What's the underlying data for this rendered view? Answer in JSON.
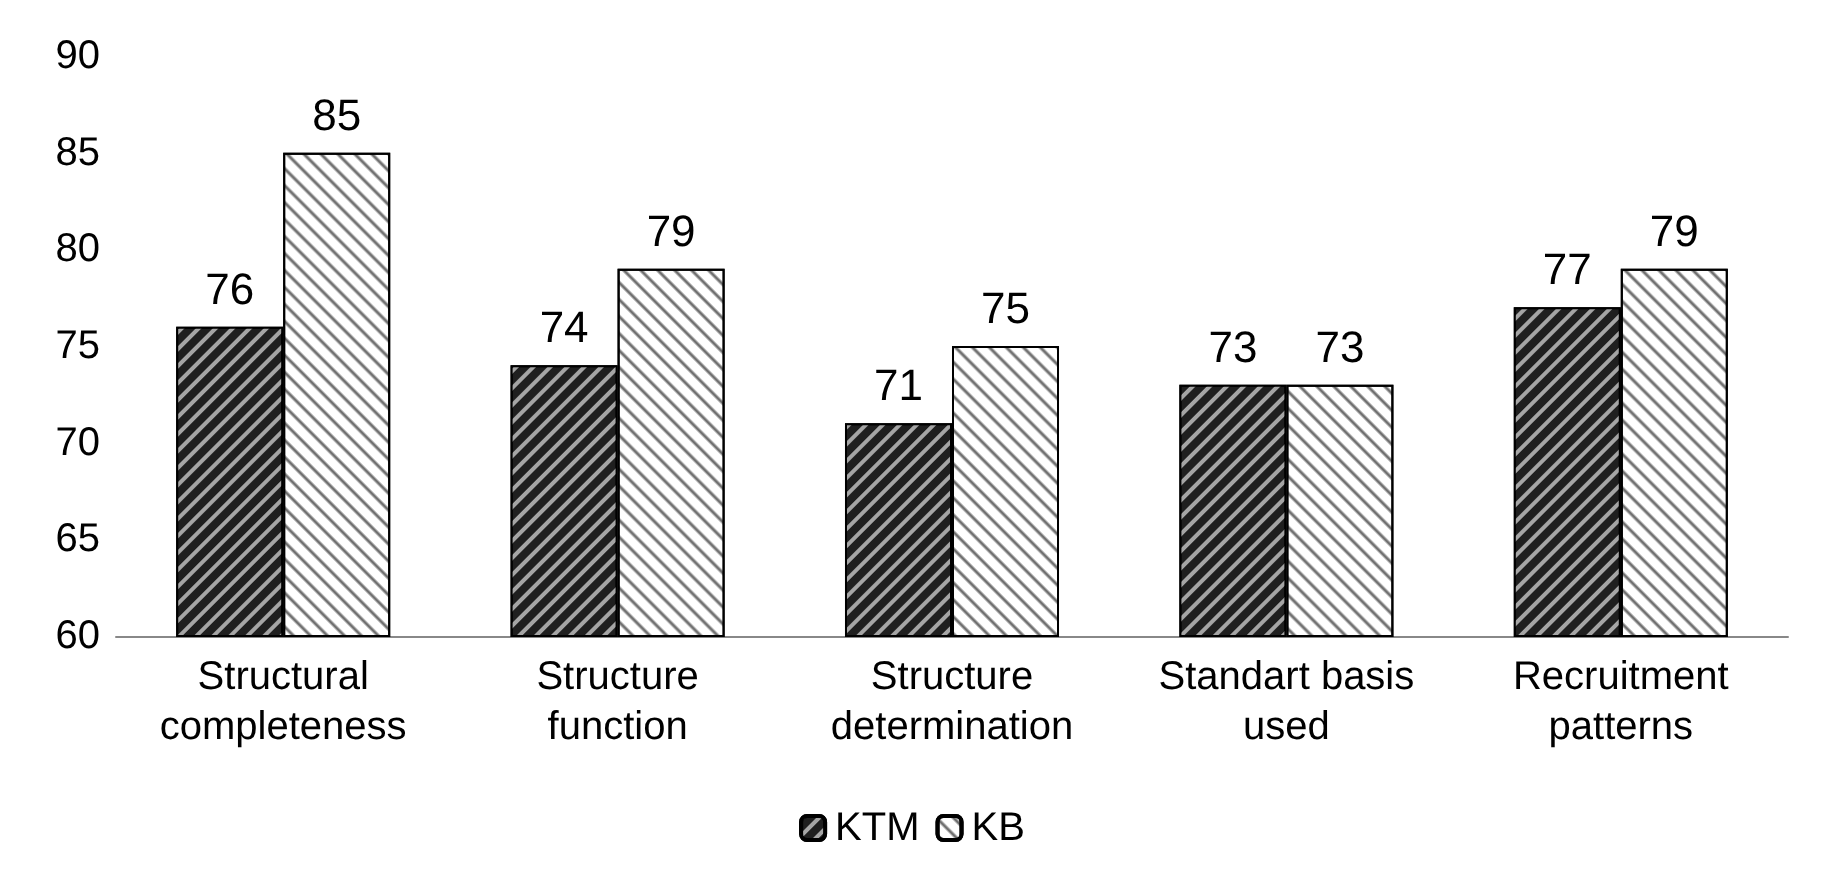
{
  "chart_data": {
    "type": "bar",
    "categories": [
      "Structural completeness",
      "Structure function",
      "Structure determination",
      "Standart basis used",
      "Recruitment patterns"
    ],
    "series": [
      {
        "name": "KTM",
        "color": "#1f1f1f",
        "values": [
          76,
          74,
          71,
          73,
          77
        ]
      },
      {
        "name": "KB",
        "color": "#ffffff",
        "values": [
          85,
          79,
          75,
          73,
          79
        ]
      }
    ],
    "ylim": [
      60,
      90
    ],
    "yticks": [
      60,
      65,
      70,
      75,
      80,
      85,
      90
    ],
    "grid": false,
    "legend": "bottom",
    "data_labels": true
  }
}
